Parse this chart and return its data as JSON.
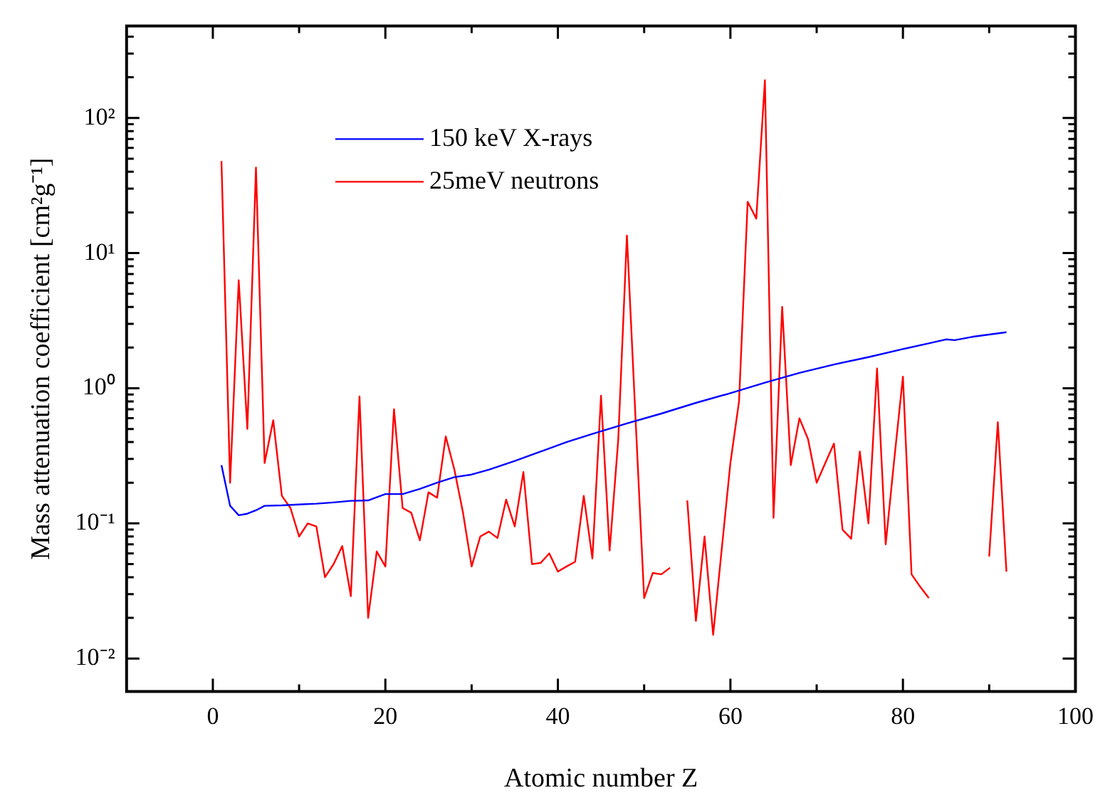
{
  "chart_data": {
    "type": "line",
    "xlabel": "Atomic number Z",
    "ylabel": "Mass attenuation coefficient [cm²g⁻¹]",
    "log": "y",
    "grid": false,
    "legend": "top left",
    "marker": "none",
    "line_style": "solid",
    "xlim": [
      -10,
      100
    ],
    "xticks": [
      0,
      {
        "value": 10,
        "label": null
      },
      20,
      {
        "value": 30,
        "label": null
      },
      40,
      {
        "value": 50,
        "label": null
      },
      60,
      {
        "value": 70,
        "label": null
      },
      80,
      {
        "value": 90,
        "label": null
      },
      100
    ],
    "ylim": [
      0.0057,
      480
    ],
    "yticks": [
      {
        "value": 0.01,
        "label": "10⁻²"
      },
      {
        "value": 0.02,
        "label": null
      },
      {
        "value": 0.03,
        "label": null
      },
      {
        "value": 0.04,
        "label": null
      },
      {
        "value": 0.05,
        "label": null
      },
      {
        "value": 0.06,
        "label": null
      },
      {
        "value": 0.07,
        "label": null
      },
      {
        "value": 0.08,
        "label": null
      },
      {
        "value": 0.09,
        "label": null
      },
      {
        "value": 0.1,
        "label": "10⁻¹"
      },
      {
        "value": 0.2,
        "label": null
      },
      {
        "value": 0.3,
        "label": null
      },
      {
        "value": 0.4,
        "label": null
      },
      {
        "value": 0.5,
        "label": null
      },
      {
        "value": 0.6,
        "label": null
      },
      {
        "value": 0.7,
        "label": null
      },
      {
        "value": 0.8,
        "label": null
      },
      {
        "value": 0.9,
        "label": null
      },
      {
        "value": 1,
        "label": "10⁰"
      },
      {
        "value": 2,
        "label": null
      },
      {
        "value": 3,
        "label": null
      },
      {
        "value": 4,
        "label": null
      },
      {
        "value": 5,
        "label": null
      },
      {
        "value": 6,
        "label": null
      },
      {
        "value": 7,
        "label": null
      },
      {
        "value": 8,
        "label": null
      },
      {
        "value": 9,
        "label": null
      },
      {
        "value": 10,
        "label": "10¹"
      },
      {
        "value": 20,
        "label": null
      },
      {
        "value": 30,
        "label": null
      },
      {
        "value": 40,
        "label": null
      },
      {
        "value": 50,
        "label": null
      },
      {
        "value": 60,
        "label": null
      },
      {
        "value": 70,
        "label": null
      },
      {
        "value": 80,
        "label": null
      },
      {
        "value": 90,
        "label": null
      },
      {
        "value": 100,
        "label": "10²"
      },
      {
        "value": 200,
        "label": null
      },
      {
        "value": 300,
        "label": null
      },
      {
        "value": 400,
        "label": null
      }
    ],
    "series": [
      {
        "name": "150 keV X-rays",
        "color": "#0000ff",
        "x": [
          1,
          2,
          3,
          4,
          5,
          6,
          8,
          10,
          12,
          14,
          16,
          18,
          20,
          22,
          24,
          26,
          28,
          30,
          32,
          35,
          38,
          41,
          44,
          48,
          52,
          56,
          60,
          64,
          68,
          72,
          76,
          80,
          83,
          85,
          86,
          88,
          90,
          92
        ],
        "values": [
          0.27,
          0.135,
          0.115,
          0.118,
          0.125,
          0.135,
          0.136,
          0.138,
          0.14,
          0.143,
          0.147,
          0.148,
          0.165,
          0.165,
          0.18,
          0.2,
          0.22,
          0.23,
          0.25,
          0.29,
          0.34,
          0.4,
          0.46,
          0.55,
          0.65,
          0.78,
          0.92,
          1.1,
          1.3,
          1.5,
          1.7,
          1.95,
          2.15,
          2.3,
          2.27,
          2.4,
          2.5,
          2.6
        ]
      },
      {
        "name": "25meV neutrons",
        "color": "#ff0000",
        "x": [
          1,
          2,
          3,
          4,
          5,
          6,
          7,
          8,
          9,
          10,
          11,
          12,
          13,
          14,
          15,
          16,
          17,
          18,
          19,
          20,
          21,
          22,
          23,
          24,
          25,
          26,
          27,
          28,
          29,
          30,
          31,
          32,
          33,
          34,
          35,
          36,
          37,
          38,
          39,
          40,
          41,
          42,
          43,
          44,
          45,
          46,
          47,
          48,
          49,
          50,
          51,
          52,
          53,
          54,
          55,
          56,
          57,
          58,
          59,
          60,
          61,
          62,
          63,
          64,
          65,
          66,
          67,
          68,
          69,
          70,
          71,
          72,
          73,
          74,
          75,
          76,
          77,
          78,
          79,
          80,
          81,
          82,
          83,
          84,
          85,
          86,
          87,
          88,
          89,
          90,
          91,
          92
        ],
        "values": [
          48,
          0.2,
          6.3,
          0.5,
          43,
          0.28,
          0.58,
          0.16,
          0.13,
          0.08,
          0.1,
          0.095,
          0.04,
          0.05,
          0.068,
          0.029,
          0.87,
          0.02,
          0.062,
          0.048,
          0.7,
          0.13,
          0.12,
          0.075,
          0.17,
          0.155,
          0.44,
          0.25,
          0.12,
          0.048,
          0.08,
          0.087,
          0.078,
          0.15,
          0.095,
          0.24,
          0.05,
          0.051,
          0.06,
          0.044,
          0.048,
          0.052,
          0.16,
          0.055,
          0.88,
          0.063,
          0.42,
          13.5,
          0.6,
          0.028,
          0.043,
          0.042,
          0.047,
          null,
          0.148,
          0.019,
          0.08,
          0.015,
          0.065,
          0.28,
          0.8,
          24,
          18,
          190,
          0.11,
          4.0,
          0.27,
          0.6,
          0.42,
          0.2,
          0.28,
          0.39,
          0.09,
          0.077,
          0.34,
          0.1,
          1.4,
          0.07,
          0.3,
          1.22,
          0.042,
          0.034,
          0.028,
          null,
          null,
          null,
          null,
          null,
          null,
          0.057,
          0.56,
          0.044
        ]
      }
    ]
  }
}
